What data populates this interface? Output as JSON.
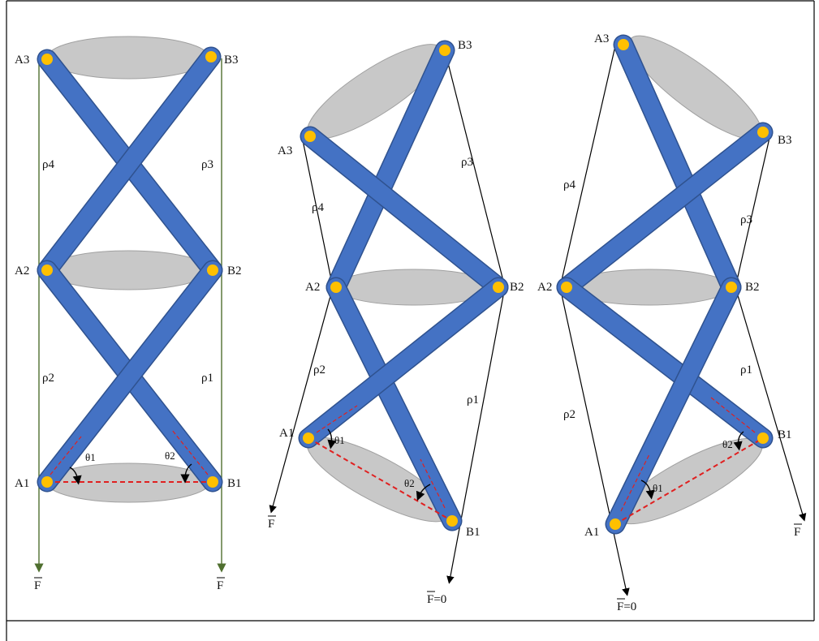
{
  "panels": [
    {
      "id": "left",
      "nodes": {
        "A1": "A1",
        "B1": "B1",
        "A2": "A2",
        "B2": "B2",
        "A3": "A3",
        "B3": "B3"
      },
      "cables": [
        "ρ1",
        "ρ2",
        "ρ3",
        "ρ4"
      ],
      "angles": [
        "θ1",
        "θ2"
      ],
      "forces": [
        "F",
        "F"
      ]
    },
    {
      "id": "middle",
      "nodes": {
        "A1": "A1",
        "B1": "B1",
        "A2": "A2",
        "B2": "B2",
        "A3": "A3",
        "B3": "B3"
      },
      "cables": [
        "ρ1",
        "ρ2",
        "ρ3",
        "ρ4"
      ],
      "angles": [
        "θ1",
        "θ2"
      ],
      "forces": [
        "F",
        "F=0"
      ]
    },
    {
      "id": "right",
      "nodes": {
        "A1": "A1",
        "B1": "B1",
        "A2": "A2",
        "B2": "B2",
        "A3": "A3",
        "B3": "B3"
      },
      "cables": [
        "ρ1",
        "ρ2",
        "ρ3",
        "ρ4"
      ],
      "angles": [
        "θ1",
        "θ2"
      ],
      "forces": [
        "F",
        "F=0"
      ]
    }
  ],
  "colors": {
    "bar": "#4472c4",
    "bar_edge": "#2f528f",
    "joint": "#ffc000",
    "platform": "#c8c8c8",
    "dashed": "#e02020",
    "cable_left": "#4f6f2f",
    "cable": "#000000"
  }
}
